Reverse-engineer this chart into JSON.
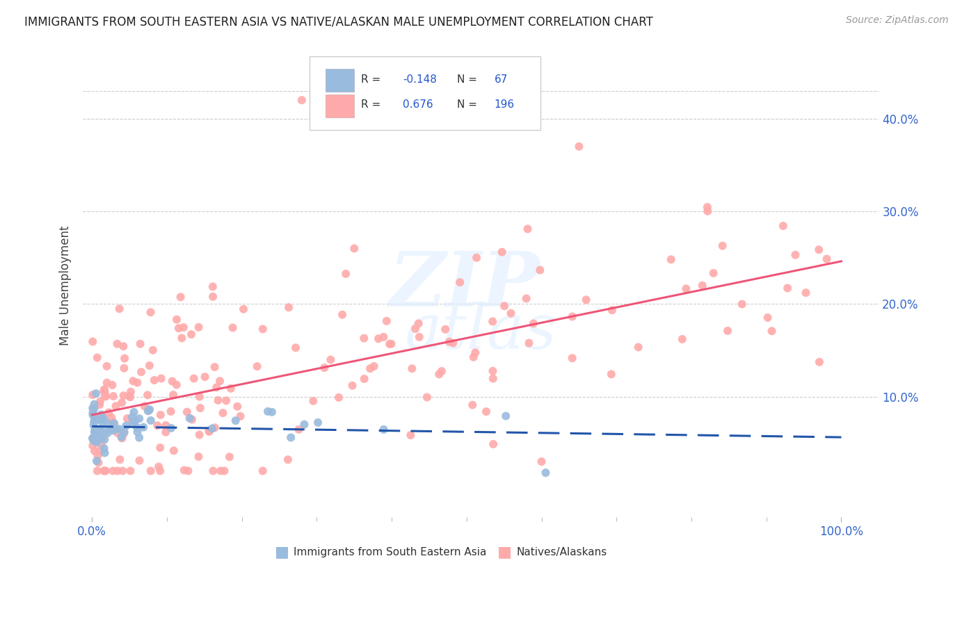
{
  "title": "IMMIGRANTS FROM SOUTH EASTERN ASIA VS NATIVE/ALASKAN MALE UNEMPLOYMENT CORRELATION CHART",
  "source": "Source: ZipAtlas.com",
  "ylabel": "Male Unemployment",
  "color_blue": "#99BBDD",
  "color_pink": "#FFAAAA",
  "color_blue_line": "#2255AA",
  "color_pink_line": "#EE5577",
  "ytick_vals": [
    0.1,
    0.2,
    0.3,
    0.4
  ],
  "ytick_labels": [
    "10.0%",
    "20.0%",
    "30.0%",
    "40.0%"
  ]
}
